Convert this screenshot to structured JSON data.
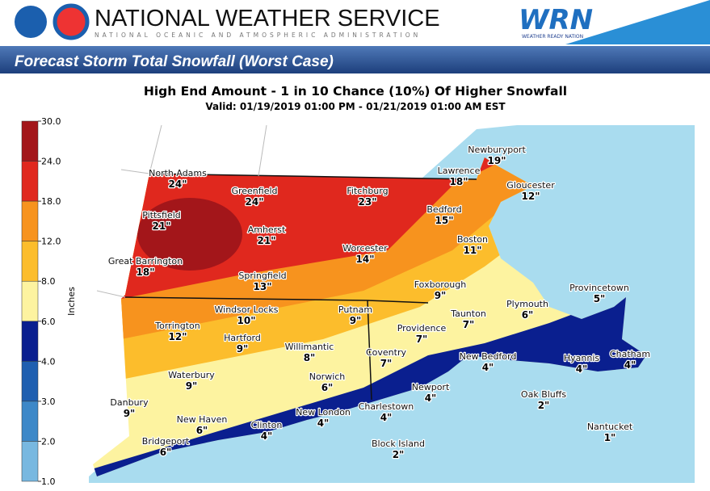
{
  "header": {
    "agency": "NATIONAL WEATHER SERVICE",
    "subagency": "NATIONAL OCEANIC AND ATMOSPHERIC ADMINISTRATION",
    "wrn": "WRN",
    "wrn_tag": "WEATHER READY NATION"
  },
  "banner": "Forecast Storm Total Snowfall (Worst Case)",
  "map": {
    "title": "High End Amount - 1 in 10 Chance (10%) Of Higher Snowfall",
    "subtitle": "Valid: 01/19/2019 01:00 PM - 01/21/2019 01:00 AM EST",
    "legend": {
      "label": "Inches",
      "ticks": [
        {
          "value": 30,
          "label": "30.0"
        },
        {
          "value": 24,
          "label": "24.0"
        },
        {
          "value": 18,
          "label": "18.0"
        },
        {
          "value": 12,
          "label": "12.0"
        },
        {
          "value": 8,
          "label": "8.0"
        },
        {
          "value": 6,
          "label": "6.0"
        },
        {
          "value": 4,
          "label": "4.0"
        },
        {
          "value": 3,
          "label": "3.0"
        },
        {
          "value": 2,
          "label": "2.0"
        },
        {
          "value": 1,
          "label": "1.0"
        }
      ],
      "colors": [
        "#a3161a",
        "#e0281e",
        "#f7931e",
        "#fcbd2c",
        "#fdf3a0",
        "#0a1f8f",
        "#1f5fb0",
        "#3d88c8",
        "#78b8e0"
      ]
    },
    "cities": [
      {
        "name": "North Adams",
        "amount": "24\""
      },
      {
        "name": "Greenfield",
        "amount": "24\""
      },
      {
        "name": "Fitchburg",
        "amount": "23\""
      },
      {
        "name": "Lawrence",
        "amount": "18\""
      },
      {
        "name": "Newburyport",
        "amount": "19\""
      },
      {
        "name": "Gloucester",
        "amount": "12\""
      },
      {
        "name": "Pittsfield",
        "amount": "21\""
      },
      {
        "name": "Amherst",
        "amount": "21\""
      },
      {
        "name": "Bedford",
        "amount": "15\""
      },
      {
        "name": "Worcester",
        "amount": "14\""
      },
      {
        "name": "Boston",
        "amount": "11\""
      },
      {
        "name": "Great Barrington",
        "amount": "18\""
      },
      {
        "name": "Springfield",
        "amount": "13\""
      },
      {
        "name": "Foxborough",
        "amount": "9\""
      },
      {
        "name": "Provincetown",
        "amount": "5\""
      },
      {
        "name": "Windsor Locks",
        "amount": "10\""
      },
      {
        "name": "Putnam",
        "amount": "9\""
      },
      {
        "name": "Plymouth",
        "amount": "6\""
      },
      {
        "name": "Taunton",
        "amount": "7\""
      },
      {
        "name": "Torrington",
        "amount": "12\""
      },
      {
        "name": "Providence",
        "amount": "7\""
      },
      {
        "name": "Hartford",
        "amount": "9\""
      },
      {
        "name": "Willimantic",
        "amount": "8\""
      },
      {
        "name": "Coventry",
        "amount": "7\""
      },
      {
        "name": "New Bedford",
        "amount": "4\""
      },
      {
        "name": "Hyannis",
        "amount": "4\""
      },
      {
        "name": "Chatham",
        "amount": "4\""
      },
      {
        "name": "Waterbury",
        "amount": "9\""
      },
      {
        "name": "Norwich",
        "amount": "6\""
      },
      {
        "name": "Newport",
        "amount": "4\""
      },
      {
        "name": "Oak Bluffs",
        "amount": "2\""
      },
      {
        "name": "Danbury",
        "amount": "9\""
      },
      {
        "name": "New Haven",
        "amount": "6\""
      },
      {
        "name": "Clinton",
        "amount": "4\""
      },
      {
        "name": "New London",
        "amount": "4\""
      },
      {
        "name": "Charlestown",
        "amount": "4\""
      },
      {
        "name": "Nantucket",
        "amount": "1\""
      },
      {
        "name": "Bridgeport",
        "amount": "6\""
      },
      {
        "name": "Block Island",
        "amount": "2\""
      }
    ]
  }
}
